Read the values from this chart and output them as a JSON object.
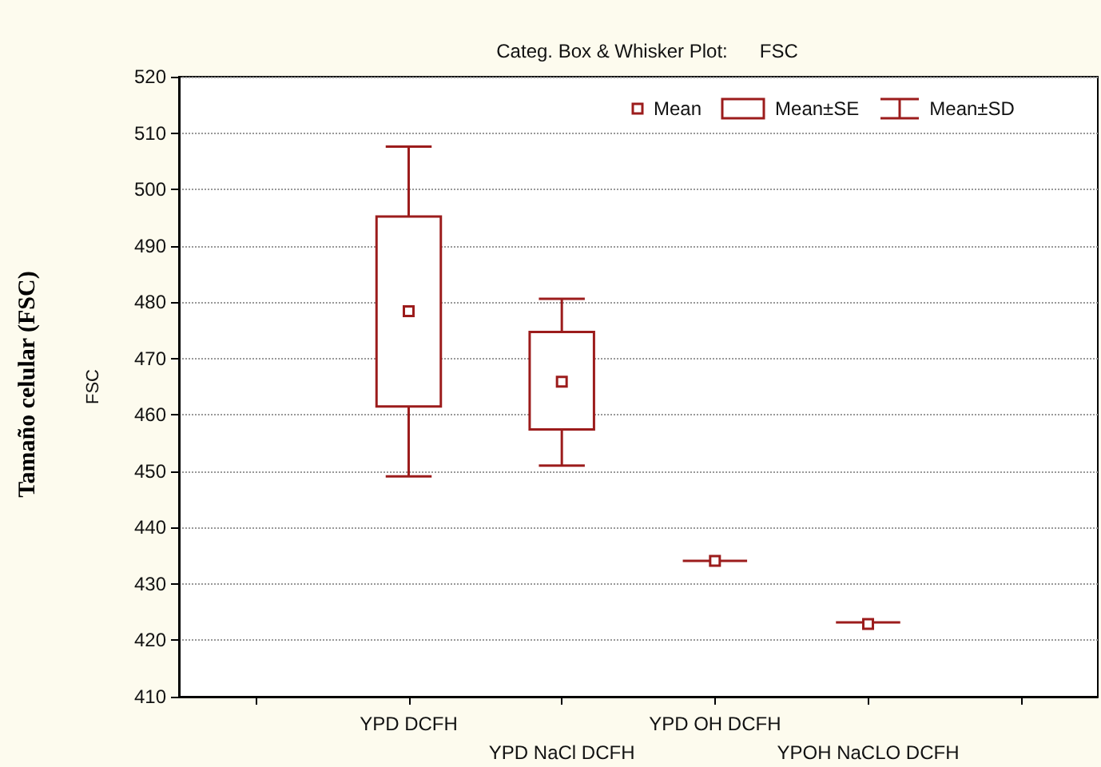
{
  "chart_data": {
    "type": "box",
    "title": "Categ. Box & Whisker Plot:      FSC",
    "ylabel": "FSC",
    "annotations": [
      "Tamaño celular (FSC)",
      "Mean",
      "Mean±SE",
      "Mean±SD"
    ],
    "categories": [
      null,
      "YPD DCFH",
      "YPD NaCl DCFH",
      "YPD OH DCFH",
      "YPOH NaCLO DCFH",
      null
    ],
    "color": "#9c1c1c",
    "marker": "square",
    "boxes": [
      null,
      {
        "low": 449.1,
        "q1": 461.5,
        "q3": 495.2,
        "high": 507.6,
        "mean": 478.4
      },
      {
        "low": 451.0,
        "q1": 457.4,
        "q3": 474.7,
        "high": 480.6,
        "mean": 465.9
      },
      {
        "low": 434.1,
        "q1": 434.1,
        "q3": 434.1,
        "high": 434.1,
        "mean": 434.1
      },
      {
        "low": 423.2,
        "q1": 423.2,
        "q3": 423.2,
        "high": 423.2,
        "mean": 422.9
      },
      null
    ],
    "ylim": [
      410,
      520
    ],
    "yticks": [
      410,
      420,
      430,
      440,
      450,
      460,
      470,
      480,
      490,
      500,
      510,
      520
    ],
    "grid": "y"
  }
}
